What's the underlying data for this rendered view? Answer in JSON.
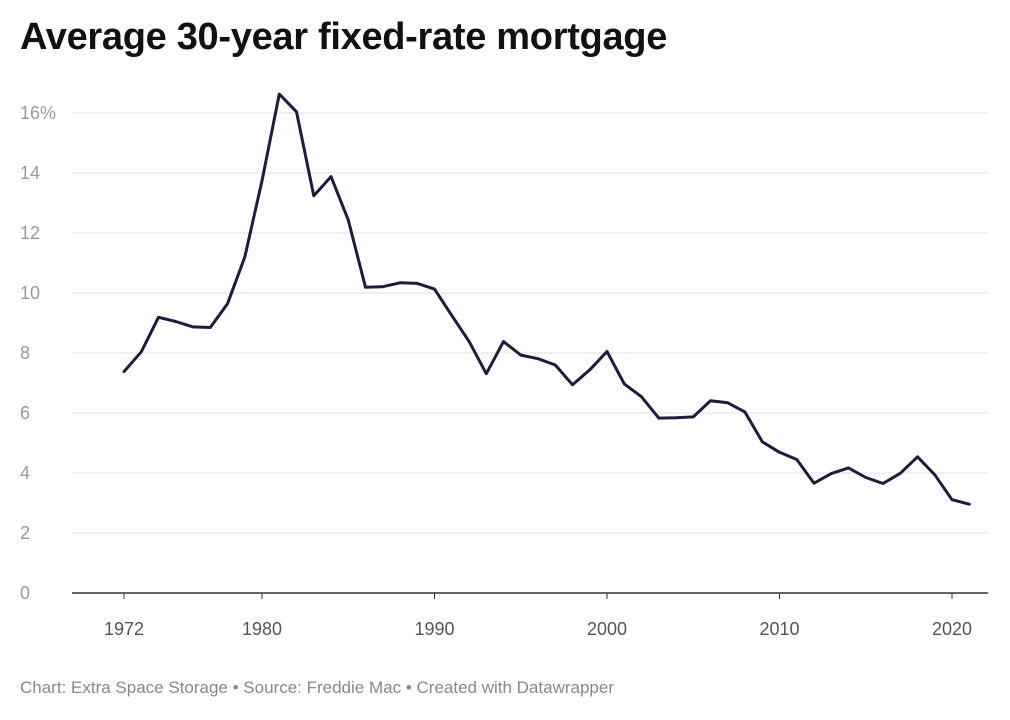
{
  "title": "Average 30-year fixed-rate mortgage",
  "footer": {
    "credit": "Chart: Extra Space Storage",
    "source": "Source: Freddie Mac",
    "tool": "Created with Datawrapper",
    "separator": " • "
  },
  "colors": {
    "line": "#1b1c3f",
    "grid": "#e2e2e2",
    "axis": "#333333"
  },
  "chart_data": {
    "type": "line",
    "title": "Average 30-year fixed-rate mortgage",
    "xlabel": "",
    "ylabel": "",
    "xlim": [
      1970,
      2022
    ],
    "ylim": [
      0,
      16
    ],
    "y_ticks": [
      0,
      2,
      4,
      6,
      8,
      10,
      12,
      14,
      16
    ],
    "y_tick_labels": [
      "0",
      "2",
      "4",
      "6",
      "8",
      "10",
      "12",
      "14",
      "16%"
    ],
    "x_ticks": [
      1972,
      1980,
      1990,
      2000,
      2010,
      2020
    ],
    "x_tick_labels": [
      "1972",
      "1980",
      "1990",
      "2000",
      "2010",
      "2020"
    ],
    "grid": true,
    "legend": "none",
    "series": [
      {
        "x": [
          1972,
          1973,
          1974,
          1975,
          1976,
          1977,
          1978,
          1979,
          1980,
          1981,
          1982,
          1983,
          1984,
          1985,
          1986,
          1987,
          1988,
          1989,
          1990,
          1991,
          1992,
          1993,
          1994,
          1995,
          1996,
          1997,
          1998,
          1999,
          2000,
          2001,
          2002,
          2003,
          2004,
          2005,
          2006,
          2007,
          2008,
          2009,
          2010,
          2011,
          2012,
          2013,
          2014,
          2015,
          2016,
          2017,
          2018,
          2019,
          2020,
          2021
        ],
        "values": [
          7.38,
          8.04,
          9.19,
          9.05,
          8.87,
          8.85,
          9.64,
          11.2,
          13.74,
          16.63,
          16.04,
          13.24,
          13.88,
          12.43,
          10.19,
          10.21,
          10.34,
          10.32,
          10.13,
          9.25,
          8.39,
          7.31,
          8.38,
          7.93,
          7.81,
          7.6,
          6.94,
          7.44,
          8.05,
          6.97,
          6.54,
          5.83,
          5.84,
          5.87,
          6.41,
          6.34,
          6.03,
          5.04,
          4.69,
          4.45,
          3.66,
          3.98,
          4.17,
          3.85,
          3.65,
          3.99,
          4.54,
          3.94,
          3.11,
          2.96
        ]
      }
    ]
  }
}
